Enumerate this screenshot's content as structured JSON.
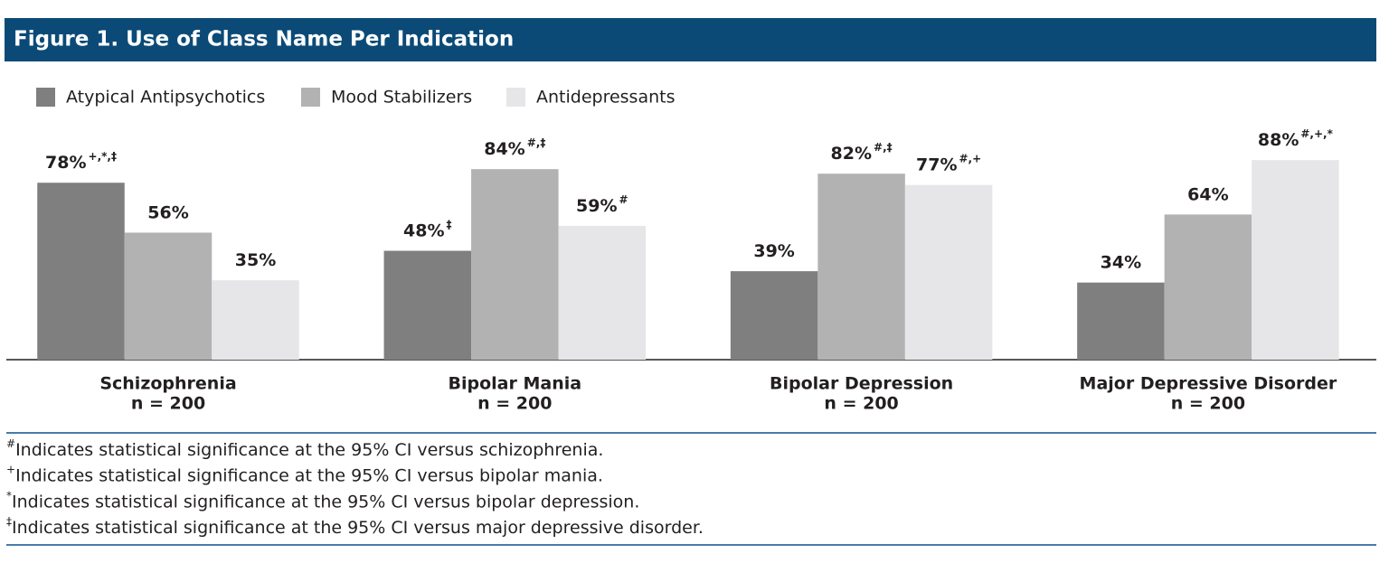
{
  "chart_data": {
    "type": "bar",
    "title": "Figure 1. Use of Class Name Per Indication",
    "categories": [
      "Schizophrenia",
      "Bipolar Mania",
      "Bipolar Depression",
      "Major Depressive Disorder"
    ],
    "category_sublabels": [
      "n = 200",
      "n = 200",
      "n = 200",
      "n = 200"
    ],
    "series": [
      {
        "name": "Atypical Antipsychotics",
        "color": "#7f7f7f",
        "values": [
          78,
          48,
          39,
          34
        ],
        "value_labels": [
          "78%",
          "48%",
          "39%",
          "34%"
        ],
        "significance": [
          "+,*,‡",
          "‡",
          null,
          null
        ]
      },
      {
        "name": "Mood Stabilizers",
        "color": "#b2b2b2",
        "values": [
          56,
          84,
          82,
          64
        ],
        "value_labels": [
          "56%",
          "84%",
          "82%",
          "64%"
        ],
        "significance": [
          null,
          "#,‡",
          "#,‡",
          null
        ]
      },
      {
        "name": "Antidepressants",
        "color": "#e6e6e8",
        "values": [
          35,
          59,
          77,
          88
        ],
        "value_labels": [
          "35%",
          "59%",
          "77%",
          "88%"
        ],
        "significance": [
          null,
          "#",
          "#,+",
          "#,+,*"
        ]
      }
    ],
    "ylim": [
      0,
      100
    ],
    "legend": "top-left",
    "footnotes": [
      {
        "symbol": "#",
        "text": "Indicates statistical significance at the 95% CI versus schizophrenia."
      },
      {
        "symbol": "+",
        "text": "Indicates statistical significance at the 95% CI versus bipolar mania."
      },
      {
        "symbol": "*",
        "text": "Indicates statistical significance at the 95% CI versus bipolar depression."
      },
      {
        "symbol": "‡",
        "text": "Indicates statistical significance at the 95% CI versus major depressive disorder."
      }
    ]
  }
}
